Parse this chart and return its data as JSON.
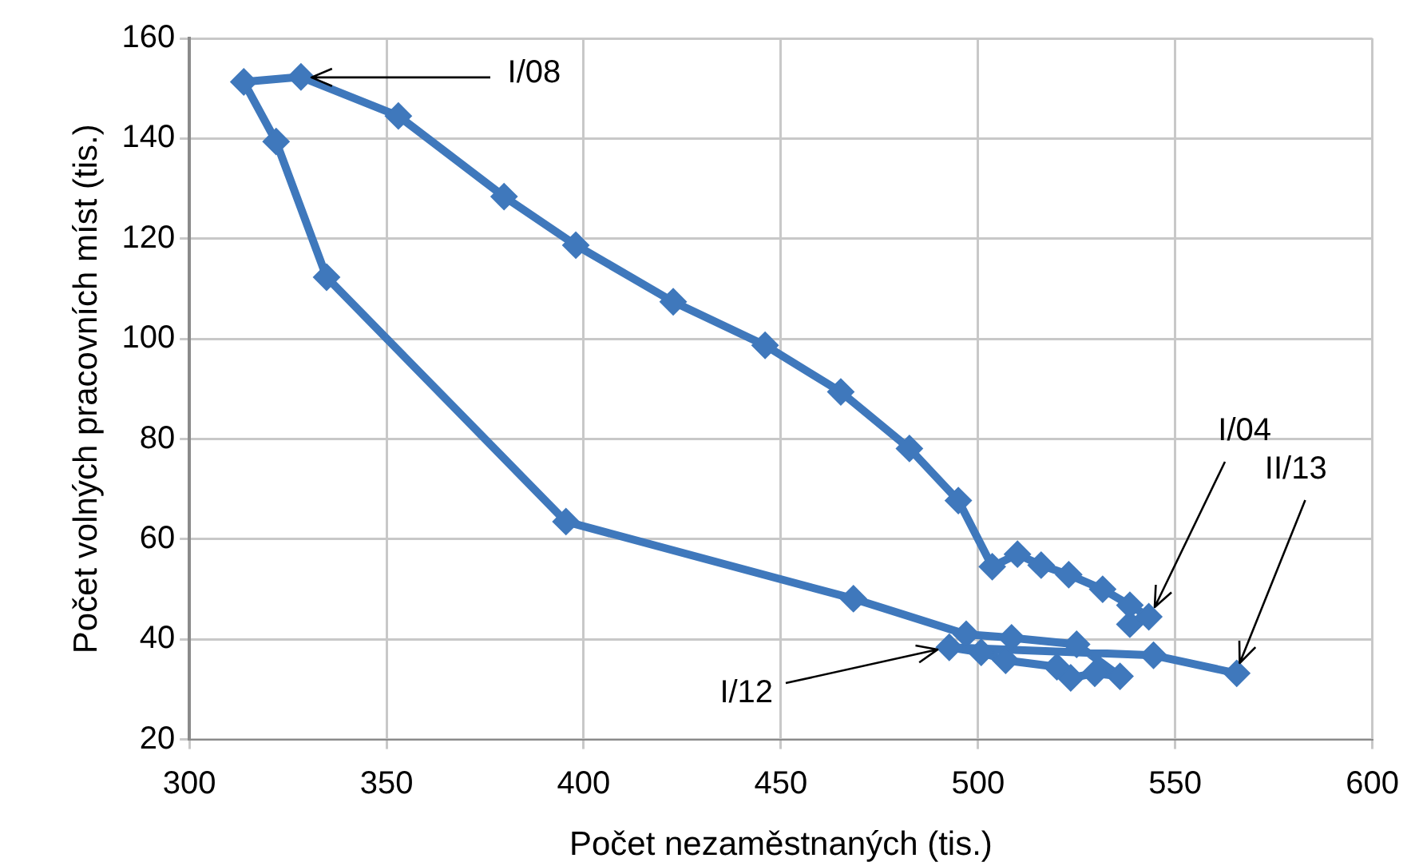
{
  "chart_data": {
    "type": "line",
    "xlabel": "Počet nezaměstnaných (tis.)",
    "ylabel": "Počet volných pracovních míst (tis.)",
    "x": [
      538.5,
      543.3,
      538.5,
      531.6,
      523,
      516,
      510,
      503.6,
      495,
      482.6,
      465.2,
      446,
      422.7,
      398,
      379.8,
      353,
      328.3,
      313.8,
      322,
      334.8,
      395.5,
      468.4,
      497,
      508.5,
      525,
      536,
      529.6,
      523.5,
      520,
      507,
      500.8,
      492.7,
      544.5,
      565.6
    ],
    "series": [
      {
        "color": "#3f78bc",
        "values": [
          43,
          44.5,
          46.8,
          50,
          52.9,
          54.8,
          57,
          54.5,
          67.7,
          78.1,
          89.4,
          98.7,
          107.4,
          118.7,
          128.4,
          144.5,
          152.3,
          151.3,
          139.4,
          112.3,
          63.5,
          48.1,
          41,
          40.3,
          39,
          32.6,
          33.2,
          32.3,
          34.5,
          35.8,
          37.4,
          38.4,
          36.8,
          33.2
        ]
      }
    ],
    "xlim": [
      300,
      600
    ],
    "xticks": [
      300,
      350,
      400,
      450,
      500,
      550,
      600
    ],
    "ylim": [
      20,
      160
    ],
    "yticks": [
      20,
      40,
      60,
      80,
      100,
      120,
      140,
      160
    ],
    "grid": true,
    "legend": false,
    "marker": "diamond",
    "line_style": "solid",
    "annotations": [
      {
        "text": "I/08",
        "x": 328.3,
        "y": 152.3
      },
      {
        "text": "I/04",
        "x": 543.3,
        "y": 44.5
      },
      {
        "text": "II/13",
        "x": 565.6,
        "y": 33.2
      },
      {
        "text": "I/12",
        "x": 492.7,
        "y": 38.4
      }
    ]
  }
}
